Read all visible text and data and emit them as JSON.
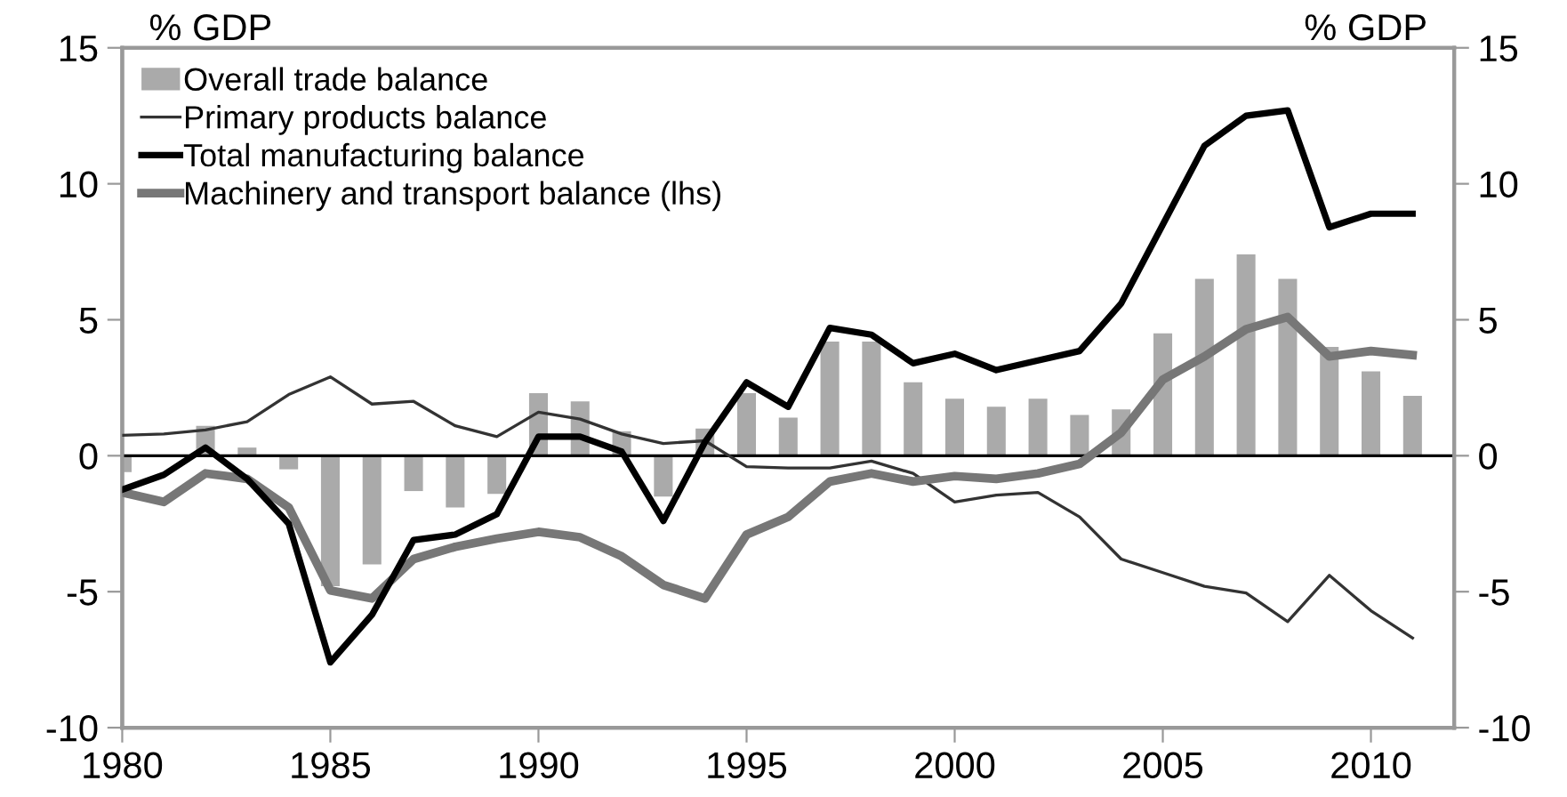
{
  "chart_data": {
    "type": "line",
    "ylabel": "% GDP",
    "y2label": "% GDP",
    "x": [
      1980,
      1981,
      1982,
      1983,
      1984,
      1985,
      1986,
      1987,
      1988,
      1989,
      1990,
      1991,
      1992,
      1993,
      1994,
      1995,
      1996,
      1997,
      1998,
      1999,
      2000,
      2001,
      2002,
      2003,
      2004,
      2005,
      2006,
      2007,
      2008,
      2009,
      2010,
      2011
    ],
    "series": [
      {
        "name": "Overall trade balance",
        "type": "bar",
        "color": "#aaaaaa",
        "values": [
          -0.6,
          0,
          1.1,
          0.3,
          -0.5,
          -4.8,
          -4.0,
          -1.3,
          -1.9,
          -1.4,
          2.3,
          2.0,
          0.9,
          -1.5,
          1.0,
          2.3,
          1.4,
          4.2,
          4.2,
          2.7,
          2.1,
          1.8,
          2.1,
          1.5,
          1.7,
          4.5,
          6.5,
          7.4,
          6.5,
          4.0,
          3.1,
          2.2
        ]
      },
      {
        "name": "Primary products balance",
        "color": "#333333",
        "line_style": "solid",
        "values": [
          0.75,
          0.8,
          0.95,
          1.25,
          2.25,
          2.9,
          1.9,
          2.0,
          1.1,
          0.7,
          1.6,
          1.35,
          0.8,
          0.45,
          0.55,
          -0.4,
          -0.45,
          -0.45,
          -0.2,
          -0.65,
          -1.7,
          -1.45,
          -1.35,
          -2.25,
          -3.8,
          -4.3,
          -4.8,
          -5.05,
          -6.1,
          -4.4,
          -5.7,
          -6.7
        ]
      },
      {
        "name": "Total manufacturing balance",
        "color": "#000000",
        "line_style": "solid",
        "values": [
          -1.25,
          -0.7,
          0.3,
          -0.85,
          -2.5,
          -7.6,
          -5.85,
          -3.1,
          -2.9,
          -2.15,
          0.7,
          0.7,
          0.15,
          -2.4,
          0.5,
          2.7,
          1.8,
          4.7,
          4.45,
          3.4,
          3.75,
          3.15,
          3.5,
          3.85,
          5.6,
          8.5,
          11.4,
          12.5,
          12.7,
          8.4,
          8.9,
          8.9
        ]
      },
      {
        "name": "Machinery and transport balance (lhs)",
        "color": "#777777",
        "line_style": "solid",
        "values": [
          -1.35,
          -1.7,
          -0.65,
          -0.85,
          -1.9,
          -4.95,
          -5.25,
          -3.8,
          -3.35,
          -3.05,
          -2.8,
          -3.0,
          -3.7,
          -4.75,
          -5.25,
          -2.9,
          -2.25,
          -0.95,
          -0.65,
          -0.95,
          -0.75,
          -0.85,
          -0.65,
          -0.3,
          0.85,
          2.8,
          3.65,
          4.65,
          5.1,
          3.65,
          3.85,
          3.7
        ]
      }
    ],
    "xlim": [
      1980,
      2012
    ],
    "xticks": [
      1980,
      1985,
      1990,
      1995,
      2000,
      2005,
      2010
    ],
    "ylim": [
      -10,
      15
    ],
    "yticks": [
      -10,
      -5,
      0,
      5,
      10,
      15
    ],
    "y2lim": [
      -10,
      15
    ],
    "y2ticks": [
      -10,
      -5,
      0,
      5,
      10,
      15
    ],
    "ref_lines": [
      {
        "axis": "y",
        "value": 0,
        "color": "#000000",
        "line_style": "solid"
      }
    ],
    "grid": false,
    "legend": "top left",
    "marker": "none"
  }
}
